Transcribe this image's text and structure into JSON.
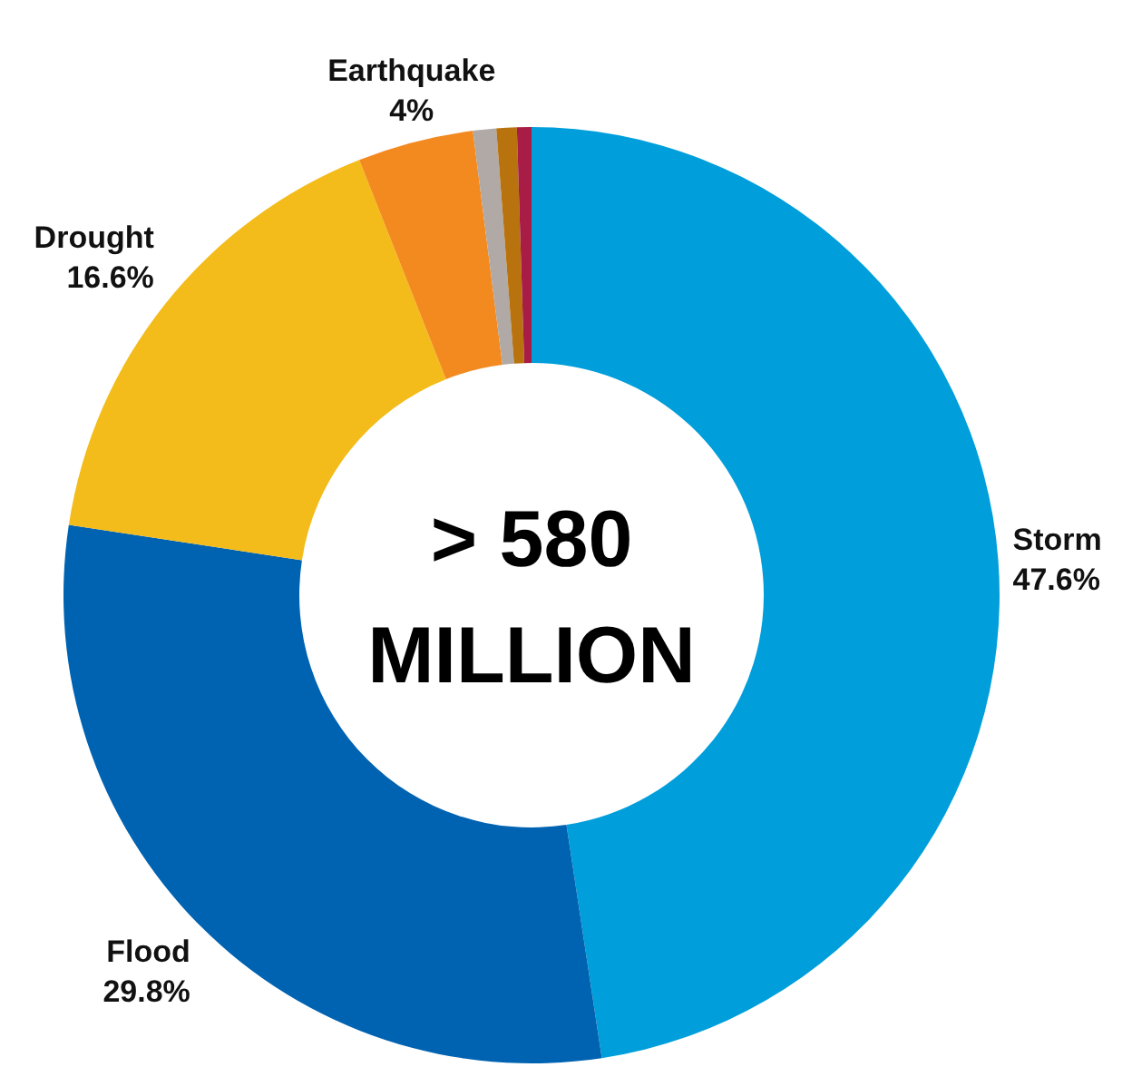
{
  "chart_data": {
    "type": "donut",
    "categories": [
      "Storm",
      "Flood",
      "Drought",
      "Earthquake",
      null,
      null,
      null
    ],
    "values": [
      47.6,
      29.8,
      16.6,
      4,
      0.8,
      0.7,
      0.5
    ],
    "value_labels": [
      "47.6%",
      "29.8%",
      "16.6%",
      "4%",
      null,
      null,
      null
    ],
    "colors": [
      "#009fdb",
      "#0063b2",
      "#f3bc1a",
      "#f38a20",
      "#b0a9a5",
      "#b8720e",
      "#a81d46"
    ],
    "annotations": [
      "> 580 MILLION"
    ]
  }
}
